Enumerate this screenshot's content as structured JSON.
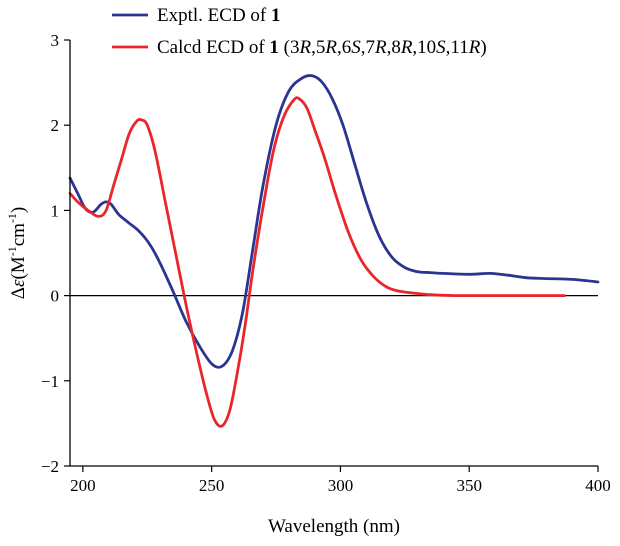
{
  "chart_data": {
    "type": "line",
    "xlabel": "Wavelength (nm)",
    "ylabel_prefix": "Δ",
    "ylabel_symbol": "ε",
    "ylabel_unit": "(M",
    "ylabel_sup1": "-1",
    "ylabel_mid": "cm",
    "ylabel_sup2": "-1",
    "ylabel_close": ")",
    "xlim": [
      195,
      400
    ],
    "ylim": [
      -2,
      3
    ],
    "x_ticks": [
      200,
      250,
      300,
      350,
      400
    ],
    "y_ticks": [
      -2,
      -1,
      0,
      1,
      2,
      3
    ],
    "zero_line": true,
    "legend_position": "top",
    "series": [
      {
        "name": "Exptl. ECD of 1",
        "legend": {
          "prefix": "Exptl. ECD of ",
          "bold": "1",
          "config": []
        },
        "color": "#2a3591",
        "x": [
          195,
          198,
          201,
          204,
          207,
          209,
          211,
          214,
          218,
          222,
          226,
          230,
          235,
          240,
          245,
          250,
          254,
          258,
          262,
          266,
          270,
          275,
          280,
          285,
          289,
          293,
          297,
          301,
          305,
          310,
          315,
          320,
          325,
          330,
          335,
          340,
          350,
          358,
          365,
          372,
          380,
          390,
          400
        ],
        "y": [
          1.38,
          1.2,
          1.02,
          0.98,
          1.07,
          1.1,
          1.07,
          0.95,
          0.85,
          0.75,
          0.6,
          0.38,
          0.05,
          -0.3,
          -0.58,
          -0.8,
          -0.83,
          -0.65,
          -0.2,
          0.55,
          1.3,
          2.0,
          2.4,
          2.55,
          2.58,
          2.5,
          2.3,
          2.0,
          1.6,
          1.1,
          0.7,
          0.45,
          0.33,
          0.28,
          0.27,
          0.26,
          0.25,
          0.26,
          0.24,
          0.21,
          0.2,
          0.19,
          0.16
        ]
      },
      {
        "name": "Calcd ECD of 1 (3R,5R,6S,7R,8R,10S,11R)",
        "legend": {
          "prefix": "Calcd ECD of ",
          "bold": "1",
          "config": [
            {
              "t": " (3",
              "i": false
            },
            {
              "t": "R",
              "i": true
            },
            {
              "t": ",5",
              "i": false
            },
            {
              "t": "R",
              "i": true
            },
            {
              "t": ",6",
              "i": false
            },
            {
              "t": "S",
              "i": true
            },
            {
              "t": ",7",
              "i": false
            },
            {
              "t": "R",
              "i": true
            },
            {
              "t": ",8",
              "i": false
            },
            {
              "t": "R",
              "i": true
            },
            {
              "t": ",10",
              "i": false
            },
            {
              "t": "S",
              "i": true
            },
            {
              "t": ",11",
              "i": false
            },
            {
              "t": "R",
              "i": true
            },
            {
              "t": ")",
              "i": false
            }
          ]
        },
        "color": "#e8262b",
        "x": [
          195,
          198,
          202,
          206,
          209,
          212,
          215,
          218,
          221,
          223,
          225,
          228,
          232,
          236,
          240,
          244,
          248,
          251,
          254,
          257,
          260,
          263,
          266,
          270,
          274,
          278,
          282,
          284,
          287,
          290,
          294,
          298,
          303,
          308,
          313,
          318,
          323,
          328,
          335,
          345,
          360,
          375,
          387
        ],
        "y": [
          1.2,
          1.1,
          1.0,
          0.93,
          1.0,
          1.3,
          1.6,
          1.9,
          2.05,
          2.06,
          2.0,
          1.7,
          1.1,
          0.5,
          -0.1,
          -0.65,
          -1.15,
          -1.45,
          -1.53,
          -1.35,
          -0.9,
          -0.35,
          0.3,
          1.05,
          1.7,
          2.1,
          2.3,
          2.31,
          2.2,
          1.95,
          1.6,
          1.2,
          0.75,
          0.42,
          0.22,
          0.1,
          0.05,
          0.03,
          0.01,
          0.0,
          0.0,
          0.0,
          0.0
        ]
      }
    ]
  }
}
